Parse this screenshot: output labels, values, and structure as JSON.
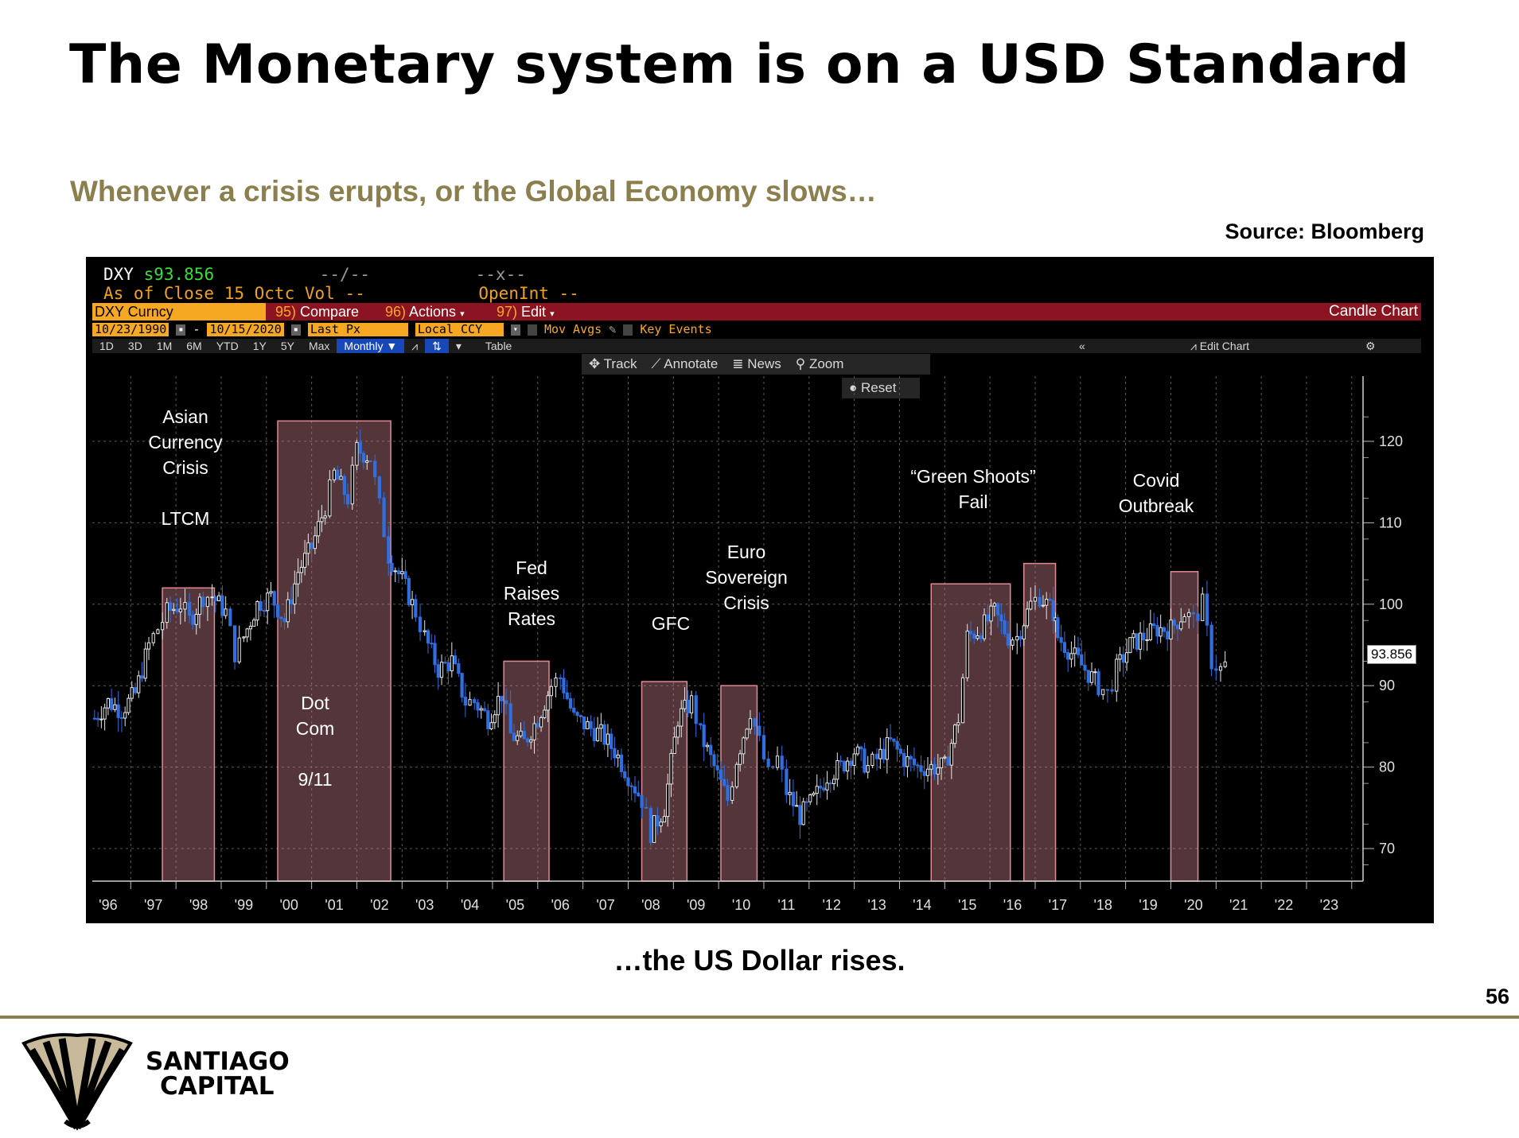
{
  "slide": {
    "title": "The Monetary system is on a USD Standard",
    "subtitle": "Whenever a crisis erupts, or the Global Economy slows…",
    "source": "Source: Bloomberg",
    "caption": "…the US Dollar rises.",
    "page_number": "56",
    "brand_line1": "SANTIAGO",
    "brand_line2": "CAPITAL",
    "accent_color": "#8c7f4e"
  },
  "terminal": {
    "ticker": "DXY",
    "last_price": "s93.856",
    "change": "--/--",
    "hilo": "--x--",
    "as_of": "As of Close 15 Octc",
    "vol": "Vol --",
    "openint": "OpenInt --",
    "security": "DXY Curncy",
    "compare": "Compare",
    "compare_num": "95)",
    "actions": "Actions",
    "actions_num": "96)",
    "edit": "Edit",
    "edit_num": "97)",
    "chart_kind": "Candle Chart",
    "start_date": "10/23/1990",
    "end_date": "10/15/2020",
    "field": "Last Px",
    "currency": "Local CCY",
    "mov_avgs": "Mov Avgs",
    "key_events": "Key Events",
    "periods": [
      "1D",
      "3D",
      "1M",
      "6M",
      "YTD",
      "1Y",
      "5Y",
      "Max"
    ],
    "frequency": "Monthly",
    "table": "Table",
    "edit_chart": "Edit Chart",
    "tools": [
      "Track",
      "Annotate",
      "News",
      "Zoom"
    ],
    "reset": "Reset",
    "price_tag": "93.856"
  },
  "chart_data": {
    "type": "line",
    "title": "",
    "xlabel": "",
    "ylabel": "",
    "ylim": [
      66,
      128
    ],
    "xlim": [
      1995.65,
      2023.75
    ],
    "x_tick_labels": [
      "'96",
      "'97",
      "'98",
      "'99",
      "'00",
      "'01",
      "'02",
      "'03",
      "'04",
      "'05",
      "'06",
      "'07",
      "'08",
      "'09",
      "'10",
      "'11",
      "'12",
      "'13",
      "'14",
      "'15",
      "'16",
      "'17",
      "'18",
      "'19",
      "'20",
      "'21",
      "'22",
      "'23"
    ],
    "y_ticks": [
      70,
      80,
      90,
      100,
      110,
      120
    ],
    "series": [
      {
        "values_x": [
          1995.7,
          1996.0,
          1996.3,
          1996.6,
          1996.9,
          1997.1,
          1997.3,
          1997.6,
          1997.8,
          1998.1,
          1998.3,
          1998.6,
          1998.8,
          1999.0,
          1999.3,
          1999.6,
          1999.9,
          2000.2,
          2000.5,
          2000.8,
          2001.0,
          2001.3,
          2001.5,
          2001.8,
          2002.0,
          2002.2,
          2002.5,
          2002.8,
          2003.0,
          2003.3,
          2003.6,
          2003.9,
          2004.1,
          2004.4,
          2004.7,
          2004.9,
          2005.2,
          2005.5,
          2005.8,
          2006.0,
          2006.3,
          2006.6,
          2006.9,
          2007.2,
          2007.5,
          2007.8,
          2008.0,
          2008.3,
          2008.6,
          2008.9,
          2009.1,
          2009.4,
          2009.7,
          2009.9,
          2010.2,
          2010.4,
          2010.6,
          2010.8,
          2011.0,
          2011.3,
          2011.6,
          2011.9,
          2012.2,
          2012.5,
          2012.8,
          2013.0,
          2013.3,
          2013.6,
          2013.9,
          2014.2,
          2014.5,
          2014.8,
          2015.0,
          2015.3,
          2015.6,
          2015.9,
          2016.1,
          2016.4,
          2016.6,
          2016.9,
          2017.0,
          2017.3,
          2017.6,
          2017.9,
          2018.1,
          2018.3,
          2018.6,
          2018.9,
          2019.2,
          2019.5,
          2019.8,
          2020.0,
          2020.2,
          2020.4,
          2020.6,
          2020.8
        ],
        "values_y": [
          86,
          88,
          87,
          89,
          95,
          97,
          99,
          100,
          98,
          101,
          101,
          99,
          94,
          96,
          100,
          101,
          98,
          104,
          107,
          112,
          116,
          113,
          119,
          118,
          112,
          106,
          103,
          99,
          96,
          92,
          93,
          88,
          88,
          86,
          89,
          84,
          83,
          86,
          90,
          91,
          86,
          85,
          84,
          82,
          79,
          76,
          72,
          75,
          86,
          88,
          84,
          80,
          76,
          81,
          87,
          83,
          79,
          81,
          77,
          74,
          76,
          79,
          80,
          82,
          80,
          81,
          83,
          81,
          80,
          80,
          80,
          86,
          96,
          97,
          99,
          96,
          96,
          100,
          101,
          99,
          96,
          94,
          92,
          90,
          89,
          92,
          95,
          96,
          97,
          97,
          99,
          98,
          100,
          93,
          92,
          93
        ]
      }
    ],
    "shaded_periods": [
      {
        "start": 1997.2,
        "end": 1998.35,
        "top": 102
      },
      {
        "start": 1999.75,
        "end": 2002.25,
        "top": 122.5
      },
      {
        "start": 2004.75,
        "end": 2005.75,
        "top": 93
      },
      {
        "start": 2007.8,
        "end": 2008.8,
        "top": 90.5
      },
      {
        "start": 2009.55,
        "end": 2010.35,
        "top": 90
      },
      {
        "start": 2014.2,
        "end": 2015.95,
        "top": 102.5
      },
      {
        "start": 2016.25,
        "end": 2016.95,
        "top": 105
      },
      {
        "start": 2019.5,
        "end": 2020.1,
        "top": 104
      }
    ],
    "annotations": [
      {
        "text": "Asian\nCurrency\nCrisis\n\nLTCM"
      },
      {
        "text": "Dot\nCom\n\n9/11"
      },
      {
        "text": "Fed\nRaises\nRates"
      },
      {
        "text": "GFC"
      },
      {
        "text": "Euro\nSovereign\nCrisis"
      },
      {
        "text": "“Green Shoots”\nFail"
      },
      {
        "text": "Covid\nOutbreak"
      }
    ]
  }
}
